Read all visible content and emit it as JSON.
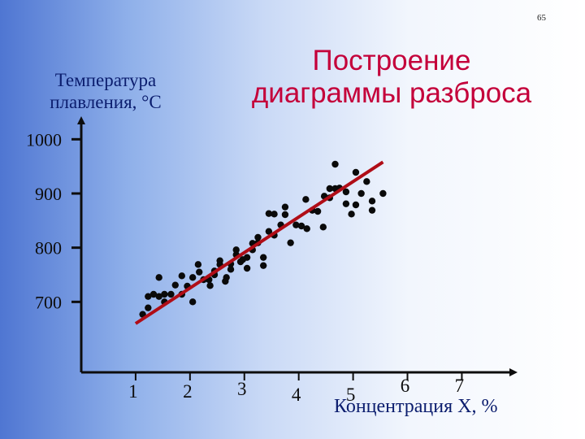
{
  "page_number": "65",
  "chart_data": {
    "type": "scatter",
    "title_lines": [
      "Построение",
      "диаграммы разброса"
    ],
    "ylabel_lines": [
      "Температура",
      "плавления, °C"
    ],
    "xlabel": "Концентрация X, %",
    "y_ticks": [
      "1000",
      "900",
      "800",
      "700"
    ],
    "x_ticks": [
      "1",
      "2",
      "3",
      "4",
      "5",
      "6",
      "7"
    ],
    "xlim": [
      0,
      7.95
    ],
    "ylim": [
      570,
      1035
    ],
    "grid": false,
    "points": [
      [
        1.13,
        677
      ],
      [
        1.23,
        689
      ],
      [
        1.23,
        710
      ],
      [
        1.33,
        714
      ],
      [
        1.43,
        745
      ],
      [
        1.43,
        710
      ],
      [
        1.53,
        700
      ],
      [
        1.53,
        714
      ],
      [
        1.65,
        714
      ],
      [
        1.73,
        731
      ],
      [
        1.85,
        748
      ],
      [
        1.85,
        714
      ],
      [
        1.95,
        729
      ],
      [
        2.05,
        700
      ],
      [
        2.05,
        745
      ],
      [
        2.15,
        769
      ],
      [
        2.17,
        755
      ],
      [
        2.25,
        741
      ],
      [
        2.35,
        741
      ],
      [
        2.37,
        730
      ],
      [
        2.45,
        750
      ],
      [
        2.45,
        757
      ],
      [
        2.55,
        776
      ],
      [
        2.55,
        769
      ],
      [
        2.65,
        738
      ],
      [
        2.67,
        745
      ],
      [
        2.75,
        760
      ],
      [
        2.75,
        770
      ],
      [
        2.85,
        787
      ],
      [
        2.85,
        796
      ],
      [
        2.93,
        774
      ],
      [
        2.97,
        778
      ],
      [
        3.05,
        762
      ],
      [
        3.05,
        782
      ],
      [
        3.15,
        796
      ],
      [
        3.15,
        808
      ],
      [
        3.25,
        819
      ],
      [
        3.25,
        809
      ],
      [
        3.35,
        782
      ],
      [
        3.35,
        767
      ],
      [
        3.45,
        830
      ],
      [
        3.45,
        863
      ],
      [
        3.55,
        862
      ],
      [
        3.55,
        823
      ],
      [
        3.67,
        842
      ],
      [
        3.75,
        861
      ],
      [
        3.75,
        875
      ],
      [
        3.85,
        809
      ],
      [
        3.95,
        842
      ],
      [
        4.05,
        840
      ],
      [
        4.13,
        889
      ],
      [
        4.15,
        835
      ],
      [
        4.25,
        869
      ],
      [
        4.35,
        867
      ],
      [
        4.45,
        838
      ],
      [
        4.47,
        895
      ],
      [
        4.57,
        909
      ],
      [
        4.57,
        892
      ],
      [
        4.67,
        954
      ],
      [
        4.67,
        909
      ],
      [
        4.75,
        910
      ],
      [
        4.87,
        881
      ],
      [
        4.87,
        903
      ],
      [
        4.97,
        862
      ],
      [
        5.05,
        879
      ],
      [
        5.05,
        939
      ],
      [
        5.15,
        900
      ],
      [
        5.25,
        922
      ],
      [
        5.35,
        886
      ],
      [
        5.35,
        869
      ],
      [
        5.55,
        900
      ]
    ],
    "trendline": {
      "x": [
        1.0,
        5.55
      ],
      "y": [
        660,
        958
      ]
    }
  }
}
